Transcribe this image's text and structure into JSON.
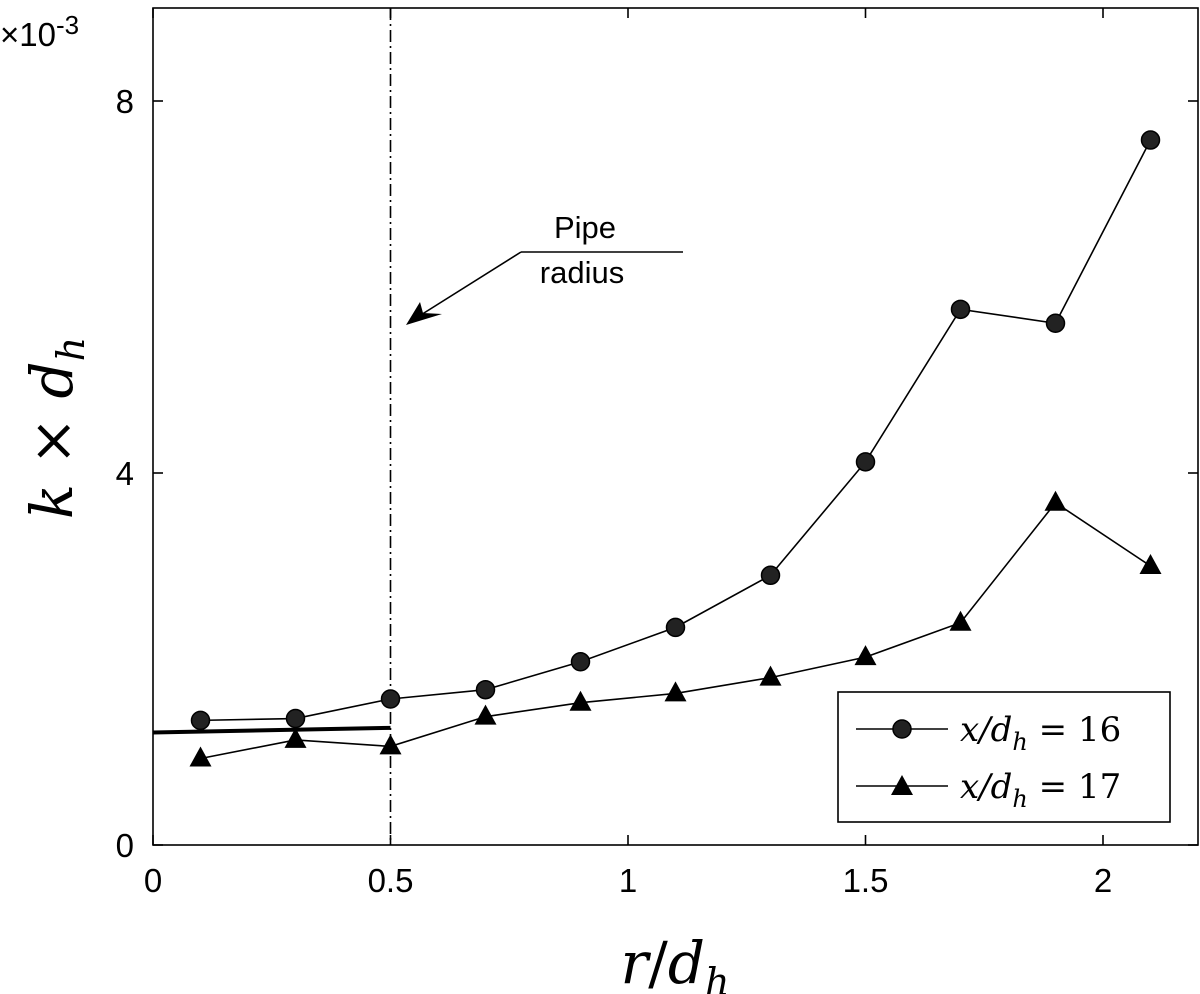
{
  "chart_data": {
    "type": "line",
    "title": "",
    "xlabel": "r/d_h",
    "ylabel": "k × d_h",
    "exponent_label": "×10",
    "exponent_power": "-3",
    "xlim": [
      0,
      2.2
    ],
    "ylim": [
      0,
      9
    ],
    "xticks": [
      0,
      0.5,
      1,
      1.5,
      2
    ],
    "xtick_labels": [
      "0",
      "0.5",
      "1",
      "1.5",
      "2"
    ],
    "yticks": [
      0,
      4,
      8
    ],
    "ytick_labels": [
      "0",
      "4",
      "8"
    ],
    "grid": false,
    "legend_position": "bottom-right",
    "series": [
      {
        "name": "x/d_h = 16",
        "legend_prefix": "x/d",
        "legend_sub": "h",
        "legend_suffix": " = 16",
        "marker": "circle",
        "x": [
          0.1,
          0.3,
          0.5,
          0.7,
          0.9,
          1.1,
          1.3,
          1.5,
          1.7,
          1.9,
          2.1
        ],
        "y": [
          1.34,
          1.36,
          1.57,
          1.67,
          1.97,
          2.34,
          2.9,
          4.12,
          5.76,
          5.61,
          7.58
        ]
      },
      {
        "name": "x/d_h = 17",
        "legend_prefix": "x/d",
        "legend_sub": "h",
        "legend_suffix": " = 17",
        "marker": "triangle",
        "x": [
          0.1,
          0.3,
          0.5,
          0.7,
          0.9,
          1.1,
          1.3,
          1.5,
          1.7,
          1.9,
          2.1
        ],
        "y": [
          0.93,
          1.13,
          1.06,
          1.38,
          1.53,
          1.63,
          1.8,
          2.02,
          2.39,
          3.68,
          3.0
        ]
      }
    ],
    "reference_line": {
      "x": [
        0.0,
        0.5
      ],
      "y": [
        1.21,
        1.26
      ]
    },
    "vertical_line": {
      "x": 0.5,
      "style": "dash-dot"
    },
    "annotation": {
      "line1": "Pipe",
      "line2": "radius",
      "arrow_target": {
        "x": 0.54,
        "y": 5.6
      }
    }
  }
}
